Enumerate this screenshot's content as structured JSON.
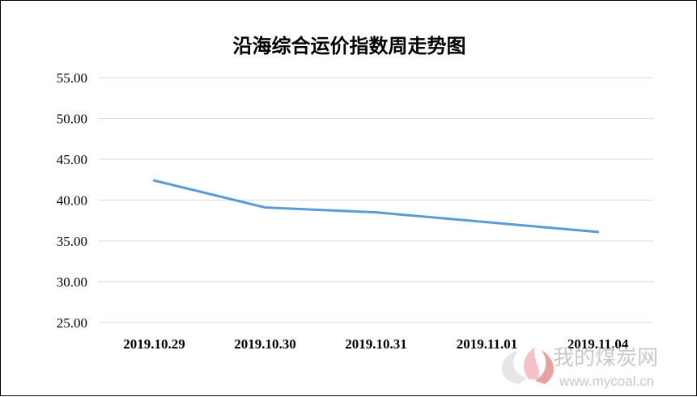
{
  "chart_data": {
    "type": "line",
    "title": "沿海综合运价指数周走势图",
    "categories": [
      "2019.10.29",
      "2019.10.30",
      "2019.10.31",
      "2019.11.01",
      "2019.11.04"
    ],
    "series": [
      {
        "values": [
          42.4,
          39.1,
          38.5,
          37.3,
          36.1
        ],
        "color": "#5b9bd5"
      }
    ],
    "yticks": [
      "25.00",
      "30.00",
      "35.00",
      "40.00",
      "45.00",
      "50.00",
      "55.00"
    ],
    "ylim": [
      25,
      55
    ],
    "grid": true,
    "legend": "none",
    "gridline_color": "#d9d9d9"
  },
  "watermark": {
    "text": "我的煤炭网",
    "url": "www.mycoal.cn"
  }
}
